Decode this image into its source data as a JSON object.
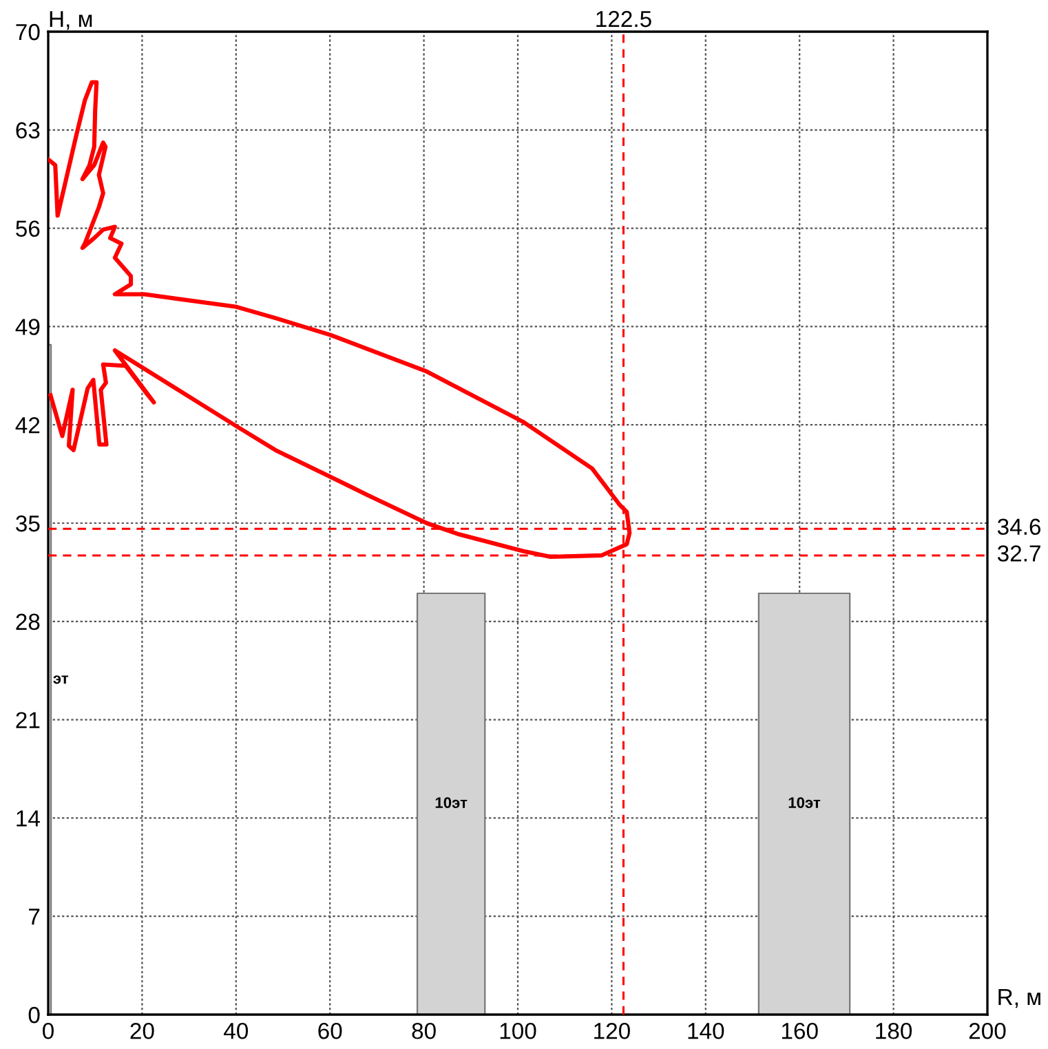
{
  "chart_data": {
    "type": "line",
    "xlabel": "R, м",
    "ylabel": "H, м",
    "xlim": [
      0,
      200
    ],
    "ylim": [
      0,
      70
    ],
    "xticks": [
      0,
      20,
      40,
      60,
      80,
      100,
      120,
      140,
      160,
      180,
      200
    ],
    "yticks": [
      0,
      7,
      14,
      21,
      28,
      35,
      42,
      49,
      56,
      63,
      70
    ],
    "grid": true,
    "marker": "none",
    "line_style": "solid",
    "series": [
      {
        "type": "area",
        "color": "#d3d3d3",
        "x": [
          0,
          0,
          0.6,
          0.6
        ],
        "values": [
          0,
          47.7,
          47.7,
          0
        ]
      },
      {
        "type": "area",
        "color": "#d3d3d3",
        "x": [
          78.6,
          78.6,
          93,
          93
        ],
        "values": [
          0,
          30,
          30,
          0
        ]
      },
      {
        "type": "area",
        "color": "#d3d3d3",
        "x": [
          151.3,
          151.3,
          170.7,
          170.7
        ],
        "values": [
          0,
          30,
          30,
          0
        ]
      },
      {
        "color": "#ff0000",
        "x": [
          0,
          1.5,
          2.0,
          3.4,
          5.9,
          7.8,
          9.3,
          10.3,
          10.0,
          9.8,
          8.8,
          7.3,
          9.8,
          11.7,
          12.2,
          10.8,
          11.7,
          10.8,
          7.8,
          7.3,
          9.8,
          11.7,
          14.2,
          13.2,
          15.6,
          14.2,
          17.6,
          17.6,
          14.2,
          20.5,
          40.1,
          48.4,
          60.1,
          80.6,
          101.2,
          115.8,
          121.7,
          123.2,
          123.8,
          123.2,
          117.8,
          107.0,
          101.2,
          87.5,
          80.6,
          68.0,
          60.1,
          48.4,
          40.1,
          14.2,
          22.5,
          20.8,
          16.5,
          11.7,
          12.3,
          11.2,
          12.4,
          10.9,
          9.6,
          8.4,
          5.4,
          4.4,
          5.2,
          3.0,
          0.5
        ],
        "values": [
          60.9,
          60.5,
          56.9,
          58.9,
          62.5,
          65.1,
          66.4,
          66.4,
          64.4,
          61.8,
          60.5,
          59.5,
          60.5,
          62.1,
          61.8,
          59.8,
          58.5,
          57.5,
          54.9,
          54.6,
          55.3,
          55.9,
          56.1,
          55.3,
          54.9,
          53.9,
          52.6,
          52.0,
          51.3,
          51.3,
          50.4,
          49.6,
          48.4,
          45.8,
          42.2,
          38.9,
          36.3,
          35.8,
          34.3,
          33.5,
          32.7,
          32.6,
          33.0,
          34.2,
          35.0,
          37.0,
          38.3,
          40.2,
          41.9,
          47.3,
          43.6,
          44.3,
          46.2,
          46.3,
          45.0,
          44.5,
          40.6,
          40.6,
          45.2,
          44.6,
          40.2,
          40.5,
          44.5,
          41.2,
          44.1
        ]
      }
    ],
    "ref_lines": [
      {
        "axis": "x",
        "value": 122.5,
        "label": "122.5",
        "color": "#ff0000",
        "line_style": "dashed"
      },
      {
        "axis": "y",
        "value": 34.6,
        "label": "34.6",
        "color": "#ff0000",
        "line_style": "dashed"
      },
      {
        "axis": "y",
        "value": 32.7,
        "label": "32.7",
        "color": "#ff0000",
        "line_style": "dashed"
      }
    ],
    "annotations": [
      "эт",
      "10эт",
      "10эт"
    ]
  }
}
